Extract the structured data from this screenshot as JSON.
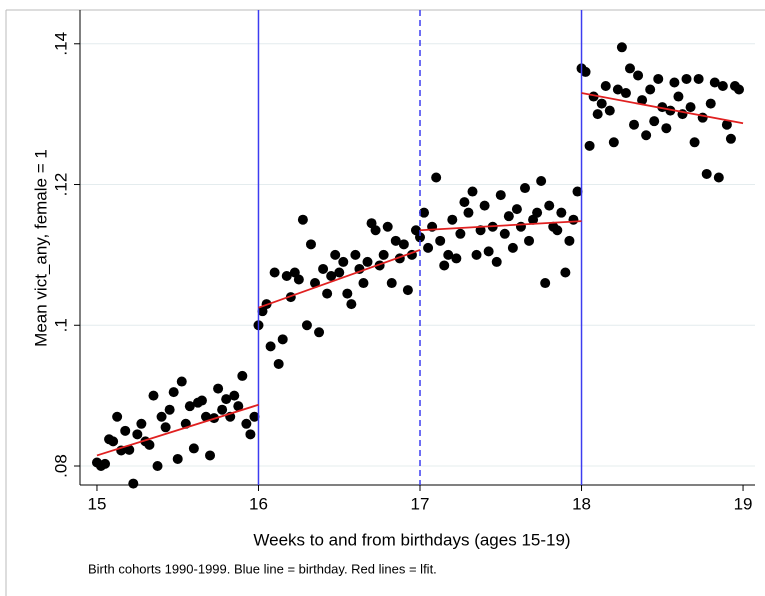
{
  "chart_data": {
    "type": "scatter",
    "x_label": "Weeks to and from birthdays (ages 15-19)",
    "y_label": "Mean vict_any, female = 1",
    "note": "Birth cohorts 1990-1999. Blue line = birthday. Red lines = lfit.",
    "xlim": [
      14.895,
      19.074
    ],
    "ylim": [
      0.0773,
      0.1448
    ],
    "xticks": [
      15,
      16,
      17,
      18,
      19
    ],
    "yticks": [
      {
        "value": 0.08,
        "label": ".08"
      },
      {
        "value": 0.1,
        "label": ".1"
      },
      {
        "value": 0.12,
        "label": ".12"
      },
      {
        "value": 0.14,
        "label": ".14"
      }
    ],
    "grid": true,
    "marker_color": "#000000",
    "vline_color": "#3c3cf0",
    "vlines": [
      {
        "x": 16,
        "style": "solid"
      },
      {
        "x": 17,
        "style": "dashed"
      },
      {
        "x": 18,
        "style": "solid"
      }
    ],
    "fit_color": "#e02020",
    "fits": [
      {
        "x": [
          15,
          16
        ],
        "y": [
          0.0815,
          0.0887
        ]
      },
      {
        "x": [
          16,
          17
        ],
        "y": [
          0.1025,
          0.1107
        ]
      },
      {
        "x": [
          17,
          18
        ],
        "y": [
          0.1135,
          0.1148
        ]
      },
      {
        "x": [
          18,
          19
        ],
        "y": [
          0.133,
          0.1287
        ]
      }
    ],
    "x": [
      15.0,
      15.025,
      15.05,
      15.075,
      15.1,
      15.125,
      15.15,
      15.175,
      15.2,
      15.225,
      15.25,
      15.275,
      15.3,
      15.325,
      15.35,
      15.375,
      15.4,
      15.425,
      15.45,
      15.475,
      15.5,
      15.525,
      15.55,
      15.575,
      15.6,
      15.625,
      15.65,
      15.675,
      15.7,
      15.725,
      15.75,
      15.775,
      15.8,
      15.825,
      15.85,
      15.875,
      15.9,
      15.925,
      15.95,
      15.975,
      16.0,
      16.025,
      16.05,
      16.075,
      16.1,
      16.125,
      16.15,
      16.175,
      16.2,
      16.225,
      16.25,
      16.275,
      16.3,
      16.325,
      16.35,
      16.375,
      16.4,
      16.425,
      16.45,
      16.475,
      16.5,
      16.525,
      16.55,
      16.575,
      16.6,
      16.625,
      16.65,
      16.675,
      16.7,
      16.725,
      16.75,
      16.775,
      16.8,
      16.825,
      16.85,
      16.875,
      16.9,
      16.925,
      16.95,
      16.975,
      17.0,
      17.025,
      17.05,
      17.075,
      17.1,
      17.125,
      17.15,
      17.175,
      17.2,
      17.225,
      17.25,
      17.275,
      17.3,
      17.325,
      17.35,
      17.375,
      17.4,
      17.425,
      17.45,
      17.475,
      17.5,
      17.525,
      17.55,
      17.575,
      17.6,
      17.625,
      17.65,
      17.675,
      17.7,
      17.725,
      17.75,
      17.775,
      17.8,
      17.825,
      17.85,
      17.875,
      17.9,
      17.925,
      17.95,
      17.975,
      18.0,
      18.025,
      18.05,
      18.075,
      18.1,
      18.125,
      18.15,
      18.175,
      18.2,
      18.225,
      18.25,
      18.275,
      18.3,
      18.325,
      18.35,
      18.375,
      18.4,
      18.425,
      18.45,
      18.475,
      18.5,
      18.525,
      18.55,
      18.575,
      18.6,
      18.625,
      18.65,
      18.675,
      18.7,
      18.725,
      18.75,
      18.775,
      18.8,
      18.825,
      18.85,
      18.875,
      18.9,
      18.925,
      18.95,
      18.975
    ],
    "values": [
      0.0805,
      0.08,
      0.0803,
      0.0838,
      0.0835,
      0.087,
      0.0822,
      0.085,
      0.0823,
      0.0775,
      0.0845,
      0.086,
      0.0835,
      0.083,
      0.09,
      0.08,
      0.087,
      0.0855,
      0.088,
      0.0905,
      0.081,
      0.092,
      0.086,
      0.0885,
      0.0825,
      0.089,
      0.0893,
      0.087,
      0.0815,
      0.0868,
      0.091,
      0.088,
      0.0895,
      0.087,
      0.09,
      0.0885,
      0.0928,
      0.086,
      0.0845,
      0.087,
      0.1,
      0.102,
      0.103,
      0.097,
      0.1075,
      0.0945,
      0.098,
      0.107,
      0.104,
      0.1075,
      0.1065,
      0.115,
      0.1,
      0.1115,
      0.106,
      0.099,
      0.108,
      0.1045,
      0.107,
      0.11,
      0.1075,
      0.109,
      0.1045,
      0.103,
      0.11,
      0.108,
      0.106,
      0.109,
      0.1145,
      0.1135,
      0.1085,
      0.11,
      0.114,
      0.106,
      0.112,
      0.1095,
      0.1115,
      0.105,
      0.11,
      0.1135,
      0.1125,
      0.116,
      0.111,
      0.114,
      0.121,
      0.112,
      0.1085,
      0.11,
      0.115,
      0.1095,
      0.113,
      0.1175,
      0.116,
      0.119,
      0.11,
      0.1135,
      0.117,
      0.1105,
      0.114,
      0.109,
      0.1185,
      0.113,
      0.1155,
      0.111,
      0.1165,
      0.114,
      0.1195,
      0.112,
      0.115,
      0.116,
      0.1205,
      0.106,
      0.117,
      0.114,
      0.1135,
      0.116,
      0.1075,
      0.112,
      0.115,
      0.119,
      0.1365,
      0.136,
      0.1255,
      0.1325,
      0.13,
      0.1315,
      0.134,
      0.1305,
      0.126,
      0.1335,
      0.1395,
      0.133,
      0.1365,
      0.1285,
      0.1355,
      0.132,
      0.127,
      0.1335,
      0.129,
      0.135,
      0.131,
      0.128,
      0.1305,
      0.1345,
      0.1325,
      0.13,
      0.135,
      0.131,
      0.126,
      0.135,
      0.1295,
      0.1215,
      0.1315,
      0.1345,
      0.121,
      0.134,
      0.1285,
      0.1265,
      0.134,
      0.1335
    ]
  }
}
